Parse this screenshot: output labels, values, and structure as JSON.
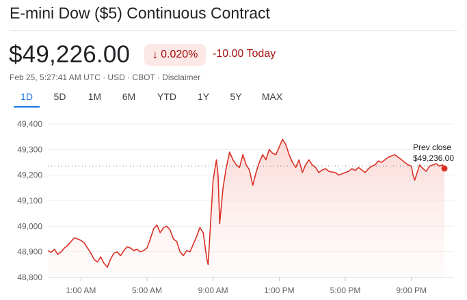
{
  "header": {
    "title": "E-mini Dow ($5) Continuous Contract"
  },
  "quote": {
    "price": "$49,226.00",
    "percent_change": "0.020%",
    "arrow_icon": "arrow-down-icon",
    "change_today": "-10.00 Today",
    "meta": "Feb 25, 5:27:41 AM UTC · USD · CBOT · Disclaimer",
    "negative_color": "#a50e0e",
    "negative_bg": "#fce8e6"
  },
  "tabs": [
    {
      "label": "1D",
      "active": true
    },
    {
      "label": "5D",
      "active": false
    },
    {
      "label": "1M",
      "active": false
    },
    {
      "label": "6M",
      "active": false
    },
    {
      "label": "YTD",
      "active": false
    },
    {
      "label": "1Y",
      "active": false
    },
    {
      "label": "5Y",
      "active": false
    },
    {
      "label": "MAX",
      "active": false
    }
  ],
  "chart_data": {
    "type": "area",
    "x_unit": "hours since 11:00 PM previous day",
    "y_ticks": [
      "49,400",
      "49,300",
      "49,200",
      "49,100",
      "49,000",
      "48,900",
      "48,800"
    ],
    "y_tick_values": [
      49400,
      49300,
      49200,
      49100,
      49000,
      48900,
      48800
    ],
    "ylim": [
      48800,
      49400
    ],
    "x_ticks": [
      "1:00 AM",
      "5:00 AM",
      "9:00 AM",
      "1:00 PM",
      "5:00 PM",
      "9:00 PM"
    ],
    "x_tick_values": [
      2,
      6,
      10,
      14,
      18,
      22
    ],
    "xlim": [
      0,
      24
    ],
    "line_color": "#d93025",
    "prev_close": 49236,
    "prev_close_label": "Prev close",
    "prev_close_value": "$49,236.00",
    "last_value": 49226,
    "points": [
      [
        0.0,
        48905
      ],
      [
        0.2,
        48898
      ],
      [
        0.4,
        48910
      ],
      [
        0.6,
        48890
      ],
      [
        0.8,
        48900
      ],
      [
        1.0,
        48915
      ],
      [
        1.2,
        48925
      ],
      [
        1.4,
        48940
      ],
      [
        1.6,
        48955
      ],
      [
        1.8,
        48950
      ],
      [
        2.0,
        48945
      ],
      [
        2.2,
        48935
      ],
      [
        2.4,
        48915
      ],
      [
        2.6,
        48895
      ],
      [
        2.8,
        48870
      ],
      [
        3.0,
        48860
      ],
      [
        3.2,
        48880
      ],
      [
        3.4,
        48855
      ],
      [
        3.6,
        48840
      ],
      [
        3.8,
        48872
      ],
      [
        4.0,
        48895
      ],
      [
        4.2,
        48900
      ],
      [
        4.4,
        48885
      ],
      [
        4.6,
        48905
      ],
      [
        4.8,
        48920
      ],
      [
        5.0,
        48915
      ],
      [
        5.2,
        48905
      ],
      [
        5.4,
        48910
      ],
      [
        5.6,
        48900
      ],
      [
        5.8,
        48905
      ],
      [
        6.0,
        48915
      ],
      [
        6.2,
        48950
      ],
      [
        6.4,
        48990
      ],
      [
        6.6,
        49005
      ],
      [
        6.8,
        48975
      ],
      [
        7.0,
        48995
      ],
      [
        7.2,
        49000
      ],
      [
        7.4,
        48985
      ],
      [
        7.6,
        48950
      ],
      [
        7.8,
        48940
      ],
      [
        8.0,
        48900
      ],
      [
        8.2,
        48885
      ],
      [
        8.4,
        48905
      ],
      [
        8.6,
        48900
      ],
      [
        8.8,
        48930
      ],
      [
        9.0,
        48960
      ],
      [
        9.2,
        48995
      ],
      [
        9.4,
        48975
      ],
      [
        9.6,
        48880
      ],
      [
        9.7,
        48850
      ],
      [
        9.8,
        48960
      ],
      [
        10.0,
        49180
      ],
      [
        10.2,
        49260
      ],
      [
        10.3,
        49200
      ],
      [
        10.4,
        49010
      ],
      [
        10.6,
        49150
      ],
      [
        10.8,
        49230
      ],
      [
        11.0,
        49290
      ],
      [
        11.2,
        49260
      ],
      [
        11.4,
        49240
      ],
      [
        11.6,
        49230
      ],
      [
        11.8,
        49280
      ],
      [
        12.0,
        49240
      ],
      [
        12.2,
        49220
      ],
      [
        12.4,
        49160
      ],
      [
        12.6,
        49210
      ],
      [
        12.8,
        49250
      ],
      [
        13.0,
        49280
      ],
      [
        13.2,
        49260
      ],
      [
        13.4,
        49300
      ],
      [
        13.6,
        49285
      ],
      [
        13.8,
        49280
      ],
      [
        14.0,
        49310
      ],
      [
        14.2,
        49340
      ],
      [
        14.4,
        49320
      ],
      [
        14.6,
        49280
      ],
      [
        14.8,
        49250
      ],
      [
        15.0,
        49230
      ],
      [
        15.2,
        49260
      ],
      [
        15.4,
        49210
      ],
      [
        15.6,
        49240
      ],
      [
        15.8,
        49260
      ],
      [
        16.0,
        49240
      ],
      [
        16.2,
        49230
      ],
      [
        16.4,
        49210
      ],
      [
        16.6,
        49220
      ],
      [
        16.8,
        49225
      ],
      [
        17.0,
        49215
      ],
      [
        17.2,
        49212
      ],
      [
        17.4,
        49210
      ],
      [
        17.6,
        49200
      ],
      [
        17.8,
        49205
      ],
      [
        18.0,
        49210
      ],
      [
        18.2,
        49215
      ],
      [
        18.4,
        49225
      ],
      [
        18.6,
        49218
      ],
      [
        18.8,
        49230
      ],
      [
        19.0,
        49220
      ],
      [
        19.2,
        49210
      ],
      [
        19.4,
        49225
      ],
      [
        19.6,
        49235
      ],
      [
        19.8,
        49240
      ],
      [
        20.0,
        49255
      ],
      [
        20.2,
        49250
      ],
      [
        20.4,
        49260
      ],
      [
        20.6,
        49270
      ],
      [
        20.8,
        49275
      ],
      [
        21.0,
        49280
      ],
      [
        21.2,
        49270
      ],
      [
        21.4,
        49260
      ],
      [
        21.6,
        49250
      ],
      [
        21.8,
        49240
      ],
      [
        22.0,
        49235
      ],
      [
        22.1,
        49200
      ],
      [
        22.2,
        49180
      ],
      [
        22.3,
        49200
      ],
      [
        22.5,
        49240
      ],
      [
        22.7,
        49225
      ],
      [
        22.9,
        49215
      ],
      [
        23.1,
        49235
      ],
      [
        23.3,
        49240
      ],
      [
        23.5,
        49245
      ],
      [
        23.7,
        49235
      ],
      [
        23.9,
        49240
      ],
      [
        24.0,
        49226
      ]
    ]
  }
}
